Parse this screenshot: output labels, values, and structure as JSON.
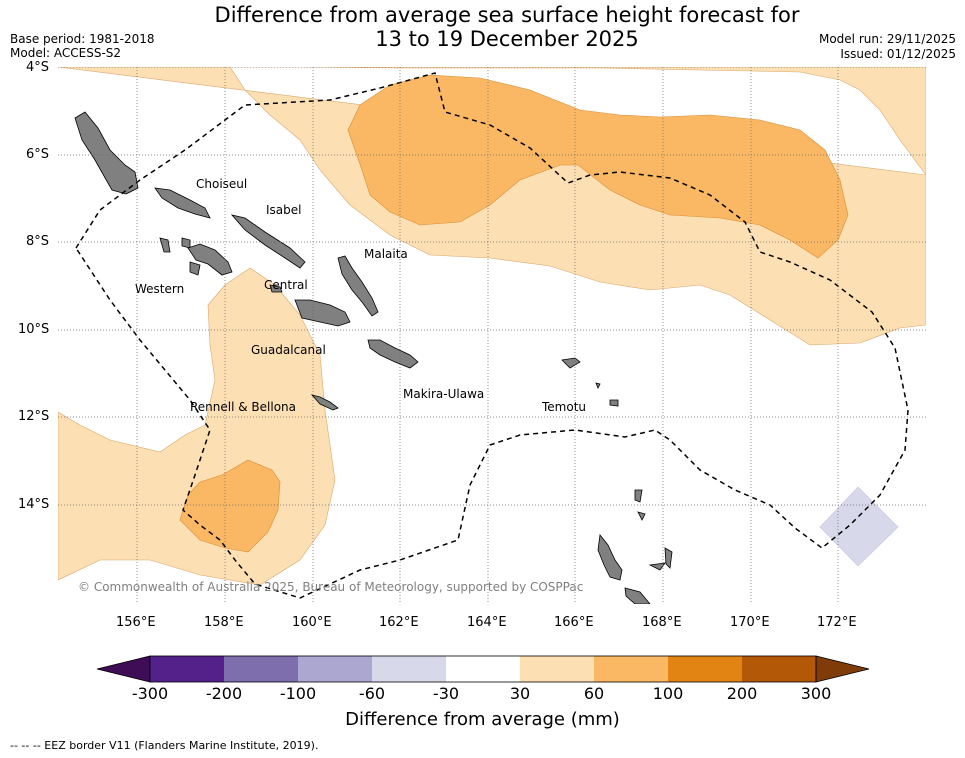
{
  "title": {
    "line1": "Difference from average sea surface height forecast for",
    "line2": "13 to 19 December 2025"
  },
  "meta": {
    "base_period": "Base period: 1981-2018",
    "model": "Model: ACCESS-S2",
    "model_run": "Model run: 29/11/2025",
    "issued": "Issued: 01/12/2025"
  },
  "map": {
    "lat_labels": [
      "4°S",
      "6°S",
      "8°S",
      "10°S",
      "12°S",
      "14°S"
    ],
    "lon_labels": [
      "156°E",
      "158°E",
      "160°E",
      "162°E",
      "164°E",
      "166°E",
      "168°E",
      "170°E",
      "172°E"
    ],
    "regions": [
      "Choiseul",
      "Isabel",
      "Malaita",
      "Western",
      "Central",
      "Guadalcanal",
      "Makira-Ulawa",
      "Rennell & Bellona",
      "Temotu"
    ],
    "copyright": "© Commonwealth of Australia 2025, Bureau of Meteorology, supported by COSPPac"
  },
  "colorbar": {
    "title": "Difference from average (mm)",
    "ticks": [
      "-300",
      "-200",
      "-100",
      "-60",
      "-30",
      "30",
      "60",
      "100",
      "200",
      "300"
    ],
    "colors": [
      "#3f0d56",
      "#54208a",
      "#7f6eae",
      "#aca7d0",
      "#d8d8eb",
      "#ffffff",
      "#fddfb4",
      "#fab764",
      "#e18413",
      "#b35806",
      "#7f3b08"
    ]
  },
  "footer": "--  --  -- EEZ border V11 (Flanders Marine Institute, 2019)."
}
